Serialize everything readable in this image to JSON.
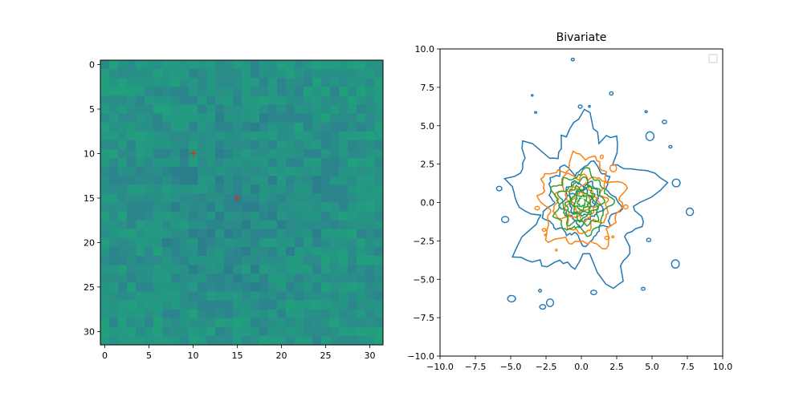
{
  "chart_data": [
    {
      "type": "heatmap",
      "title": "",
      "xlim": [
        -0.5,
        31.5
      ],
      "ylim": [
        31.5,
        -0.5
      ],
      "y_inverted": true,
      "xticks": [
        0,
        5,
        10,
        15,
        20,
        25,
        30
      ],
      "yticks": [
        0,
        5,
        10,
        15,
        20,
        25,
        30
      ],
      "xticklabels": [
        "0",
        "5",
        "10",
        "15",
        "20",
        "25",
        "30"
      ],
      "yticklabels": [
        "0",
        "5",
        "10",
        "15",
        "20",
        "25",
        "30"
      ],
      "grid_size": [
        32,
        32
      ],
      "colormap": "viridis",
      "base_color": "#2a8f84",
      "markers": [
        {
          "x": 10,
          "y": 10,
          "symbol": "+",
          "color": "#e8281e"
        },
        {
          "x": 15,
          "y": 15,
          "symbol": "+",
          "color": "#e8281e"
        }
      ]
    },
    {
      "type": "contour",
      "title": "Bivariate",
      "xlim": [
        -10,
        10
      ],
      "ylim": [
        -10,
        10
      ],
      "xticks": [
        -10,
        -7.5,
        -5,
        -2.5,
        0,
        2.5,
        5,
        7.5,
        10
      ],
      "yticks": [
        -10,
        -7.5,
        -5,
        -2.5,
        0,
        2.5,
        5,
        7.5,
        10
      ],
      "xticklabels": [
        "−10.0",
        "−7.5",
        "−5.0",
        "−2.5",
        "0.0",
        "2.5",
        "5.0",
        "7.5",
        "10.0"
      ],
      "yticklabels": [
        "−10.0",
        "−7.5",
        "−5.0",
        "−2.5",
        "0.0",
        "2.5",
        "5.0",
        "7.5",
        "10.0"
      ],
      "legend": "top-right",
      "series": [
        {
          "color": "#1f77b4",
          "center": [
            0,
            0
          ],
          "radii": [
            4.6,
            2.4,
            1.3,
            0.8
          ]
        },
        {
          "color": "#ff7f0e",
          "center": [
            0,
            0
          ],
          "radii": [
            2.8,
            1.8,
            1.1,
            0.6
          ]
        },
        {
          "color": "#2ca02c",
          "center": [
            0,
            0
          ],
          "radii": [
            1.9,
            1.4,
            1.0,
            0.7,
            0.45,
            0.25
          ]
        }
      ],
      "center_blob": {
        "x": 0.05,
        "y": 0.05,
        "color": "#ffffff"
      }
    }
  ]
}
